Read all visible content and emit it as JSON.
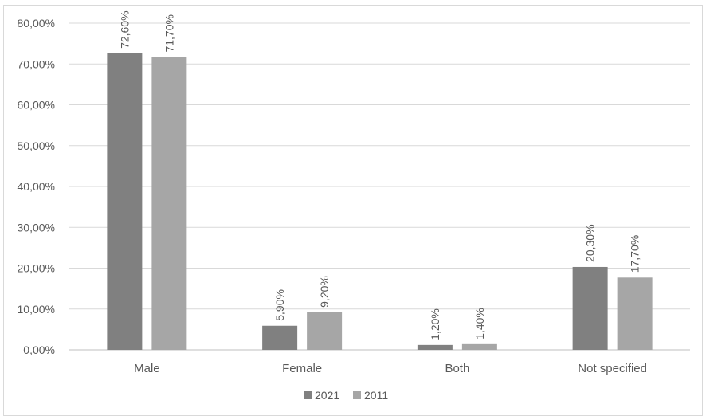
{
  "chart_data": {
    "type": "bar",
    "categories": [
      "Male",
      "Female",
      "Both",
      "Not specified"
    ],
    "series": [
      {
        "name": "2021",
        "color": "#808080",
        "values": [
          72.6,
          5.9,
          1.2,
          20.3
        ],
        "labels": [
          "72,60%",
          "5,90%",
          "1,20%",
          "20,30%"
        ]
      },
      {
        "name": "2011",
        "color": "#a6a6a6",
        "values": [
          71.7,
          9.2,
          1.4,
          17.7
        ],
        "labels": [
          "71,70%",
          "9,20%",
          "1,40%",
          "17,70%"
        ]
      }
    ],
    "y_ticks": [
      {
        "value": 0,
        "label": "0,00%"
      },
      {
        "value": 10,
        "label": "10,00%"
      },
      {
        "value": 20,
        "label": "20,00%"
      },
      {
        "value": 30,
        "label": "30,00%"
      },
      {
        "value": 40,
        "label": "40,00%"
      },
      {
        "value": 50,
        "label": "50,00%"
      },
      {
        "value": 60,
        "label": "60,00%"
      },
      {
        "value": 70,
        "label": "70,00%"
      },
      {
        "value": 80,
        "label": "80,00%"
      }
    ],
    "ylim": [
      0,
      80
    ],
    "title": "",
    "xlabel": "",
    "ylabel": "",
    "grid": true,
    "legend_position": "bottom"
  }
}
